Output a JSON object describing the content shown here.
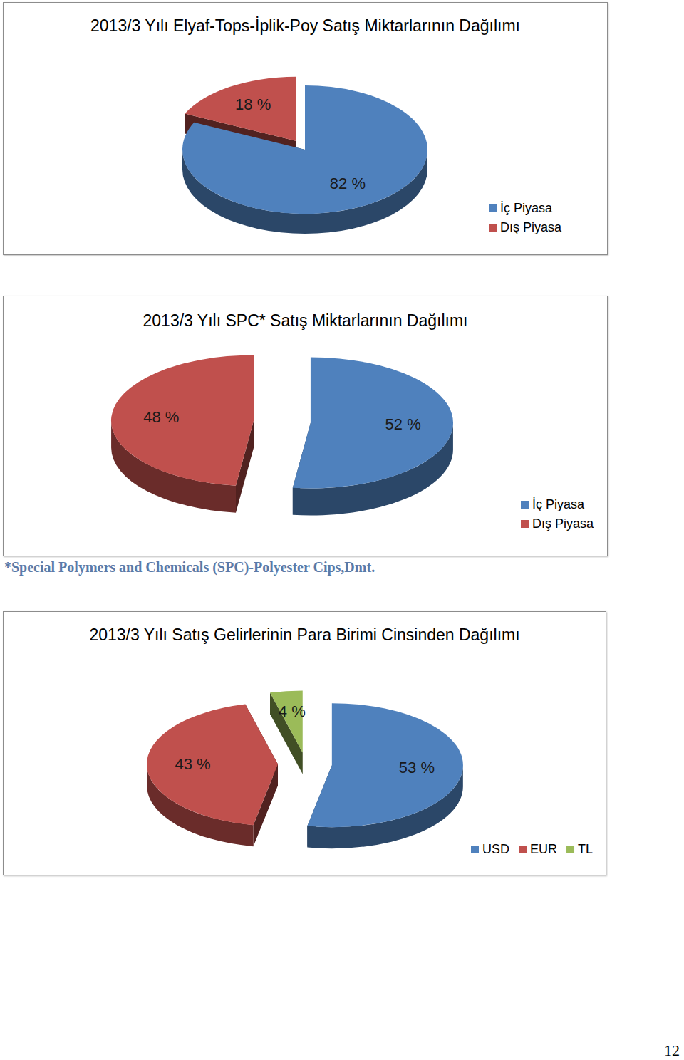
{
  "chart_data": [
    {
      "type": "pie",
      "title": "2013/3 Yılı Elyaf-Tops-İplik-Poy Satış Miktarlarının Dağılımı",
      "categories": [
        "İç Piyasa",
        "Dış Piyasa"
      ],
      "values": [
        82,
        18
      ],
      "value_labels": [
        "82 %",
        "18 %"
      ],
      "colors": [
        "#4f81bd",
        "#c0504d"
      ],
      "data_labels": true,
      "legend": "right"
    },
    {
      "type": "pie",
      "title": "2013/3 Yılı SPC* Satış Miktarlarının Dağılımı",
      "categories": [
        "İç Piyasa",
        "Dış Piyasa"
      ],
      "values": [
        52,
        48
      ],
      "value_labels": [
        "52 %",
        "48 %"
      ],
      "colors": [
        "#4f81bd",
        "#c0504d"
      ],
      "data_labels": true,
      "legend": "right"
    },
    {
      "type": "pie",
      "title": "2013/3 Yılı Satış Gelirlerinin Para Birimi Cinsinden Dağılımı",
      "categories": [
        "USD",
        "EUR",
        "TL"
      ],
      "values": [
        53,
        43,
        4
      ],
      "value_labels": [
        "53 %",
        "43 %",
        "4 %"
      ],
      "colors": [
        "#4f81bd",
        "#c0504d",
        "#9bbb59"
      ],
      "data_labels": true,
      "legend": "bottom"
    }
  ],
  "footnote": "*Special Polymers and Chemicals (SPC)-Polyester Cips,Dmt.",
  "page_number": 12
}
